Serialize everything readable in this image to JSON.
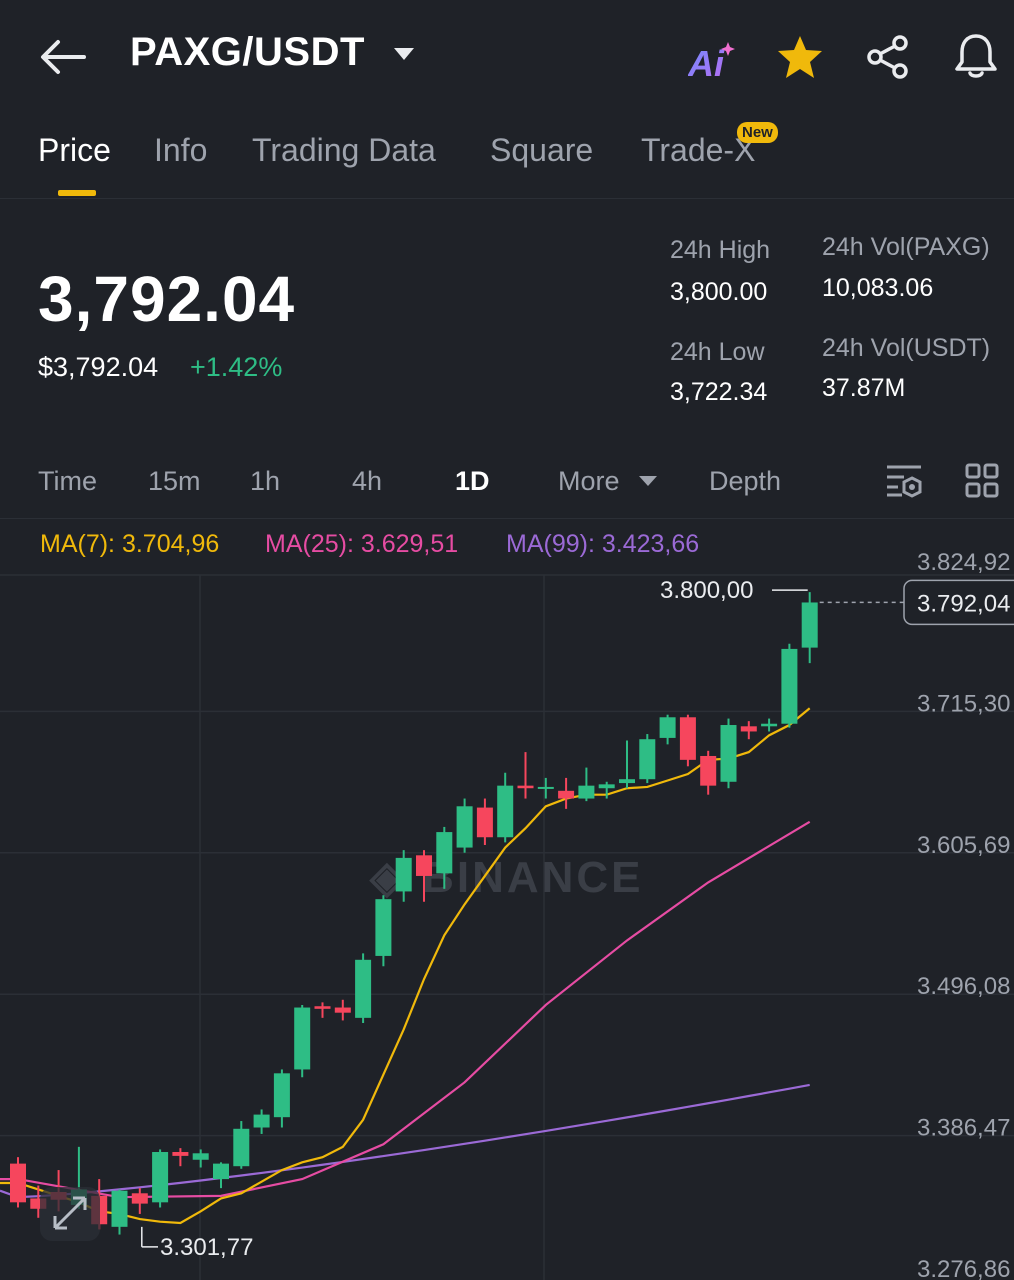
{
  "header": {
    "pair": "PAXG/USDT",
    "ai_label": "Ai",
    "icons": [
      "back-arrow-icon",
      "caret-down-icon",
      "ai-icon",
      "star-icon",
      "share-icon",
      "bell-icon"
    ]
  },
  "tabs": [
    {
      "label": "Price",
      "active": true
    },
    {
      "label": "Info"
    },
    {
      "label": "Trading Data"
    },
    {
      "label": "Square"
    },
    {
      "label": "Trade-X",
      "badge": "New"
    }
  ],
  "ticker": {
    "last_price": "3,792.04",
    "usd_price": "$3,792.04",
    "change_pct": "+1.42%",
    "high_label": "24h High",
    "high": "3,800.00",
    "low_label": "24h Low",
    "low": "3,722.34",
    "vol_base_label": "24h Vol(PAXG)",
    "vol_base": "10,083.06",
    "vol_quote_label": "24h Vol(USDT)",
    "vol_quote": "37.87M"
  },
  "timeframes": {
    "items": [
      "Time",
      "15m",
      "1h",
      "4h",
      "1D",
      "More",
      "Depth"
    ],
    "active": "1D"
  },
  "indicators": {
    "ma7": "MA(7): 3.704,96",
    "ma25": "MA(25): 3.629,51",
    "ma99": "MA(99): 3.423,66"
  },
  "colors": {
    "up": "#2ebd85",
    "down": "#f6465d",
    "ma7": "#f0b90b",
    "ma25": "#e64ca3",
    "ma99": "#9b6ad6",
    "accent": "#f0b90b"
  },
  "chart_data": {
    "type": "candlestick",
    "y_ticks": [
      "3.824,92",
      "3.715,30",
      "3.605,69",
      "3.496,08",
      "3.386,47",
      "3.276,86"
    ],
    "ylim": [
      3276.86,
      3824.92
    ],
    "high_label": "3.800,00",
    "low_label": "3.301,77",
    "last_label": "3.792,04",
    "watermark": "BINANCE",
    "candles": [
      {
        "o": 3357,
        "h": 3362,
        "l": 3323,
        "c": 3327
      },
      {
        "o": 3330,
        "h": 3340,
        "l": 3315,
        "c": 3322
      },
      {
        "o": 3335,
        "h": 3352,
        "l": 3320,
        "c": 3329
      },
      {
        "o": 3325,
        "h": 3370,
        "l": 3322,
        "c": 3337
      },
      {
        "o": 3332,
        "h": 3345,
        "l": 3306,
        "c": 3310
      },
      {
        "o": 3308,
        "h": 3337,
        "l": 3302,
        "c": 3336
      },
      {
        "o": 3334,
        "h": 3338,
        "l": 3318,
        "c": 3326
      },
      {
        "o": 3327,
        "h": 3368,
        "l": 3323,
        "c": 3366
      },
      {
        "o": 3366,
        "h": 3369,
        "l": 3355,
        "c": 3363
      },
      {
        "o": 3360,
        "h": 3368,
        "l": 3354,
        "c": 3365
      },
      {
        "o": 3345,
        "h": 3358,
        "l": 3338,
        "c": 3357
      },
      {
        "o": 3355,
        "h": 3390,
        "l": 3353,
        "c": 3384
      },
      {
        "o": 3385,
        "h": 3399,
        "l": 3380,
        "c": 3395
      },
      {
        "o": 3393,
        "h": 3430,
        "l": 3385,
        "c": 3427
      },
      {
        "o": 3430,
        "h": 3480,
        "l": 3424,
        "c": 3478
      },
      {
        "o": 3479,
        "h": 3482,
        "l": 3470,
        "c": 3477
      },
      {
        "o": 3478,
        "h": 3484,
        "l": 3468,
        "c": 3474
      },
      {
        "o": 3470,
        "h": 3520,
        "l": 3466,
        "c": 3515
      },
      {
        "o": 3518,
        "h": 3565,
        "l": 3510,
        "c": 3562
      },
      {
        "o": 3568,
        "h": 3600,
        "l": 3560,
        "c": 3594
      },
      {
        "o": 3596,
        "h": 3600,
        "l": 3560,
        "c": 3580
      },
      {
        "o": 3582,
        "h": 3618,
        "l": 3570,
        "c": 3614
      },
      {
        "o": 3602,
        "h": 3640,
        "l": 3598,
        "c": 3634
      },
      {
        "o": 3633,
        "h": 3640,
        "l": 3604,
        "c": 3610
      },
      {
        "o": 3610,
        "h": 3660,
        "l": 3606,
        "c": 3650
      },
      {
        "o": 3650,
        "h": 3676,
        "l": 3640,
        "c": 3648
      },
      {
        "o": 3648,
        "h": 3656,
        "l": 3640,
        "c": 3649
      },
      {
        "o": 3646,
        "h": 3656,
        "l": 3632,
        "c": 3640
      },
      {
        "o": 3640,
        "h": 3664,
        "l": 3638,
        "c": 3650
      },
      {
        "o": 3648,
        "h": 3653,
        "l": 3640,
        "c": 3651
      },
      {
        "o": 3652,
        "h": 3685,
        "l": 3648,
        "c": 3655
      },
      {
        "o": 3655,
        "h": 3690,
        "l": 3652,
        "c": 3686
      },
      {
        "o": 3687,
        "h": 3705,
        "l": 3682,
        "c": 3703
      },
      {
        "o": 3703,
        "h": 3705,
        "l": 3665,
        "c": 3670
      },
      {
        "o": 3673,
        "h": 3677,
        "l": 3643,
        "c": 3650
      },
      {
        "o": 3653,
        "h": 3702,
        "l": 3648,
        "c": 3697
      },
      {
        "o": 3696,
        "h": 3700,
        "l": 3686,
        "c": 3692
      },
      {
        "o": 3696,
        "h": 3702,
        "l": 3692,
        "c": 3698
      },
      {
        "o": 3698,
        "h": 3760,
        "l": 3695,
        "c": 3756
      },
      {
        "o": 3757,
        "h": 3800,
        "l": 3745,
        "c": 3792
      }
    ],
    "ma7": [
      3320,
      3318,
      3314,
      3312,
      3311,
      3320,
      3330,
      3334,
      3343,
      3352,
      3358,
      3362,
      3370,
      3391,
      3426,
      3461,
      3500,
      3534,
      3558,
      3580,
      3602,
      3617,
      3634,
      3640,
      3643,
      3643,
      3648,
      3649,
      3654,
      3659,
      3670,
      3671,
      3676,
      3689,
      3697,
      3710
    ],
    "ma25": [
      3329,
      3331,
      3334,
      3338,
      3345,
      3352,
      3366,
      3383,
      3401,
      3420,
      3449,
      3479,
      3509,
      3541,
      3570,
      3597,
      3622
    ],
    "ma99": [
      3336,
      3339,
      3343,
      3350,
      3360,
      3375,
      3388,
      3401,
      3413,
      3418
    ]
  }
}
